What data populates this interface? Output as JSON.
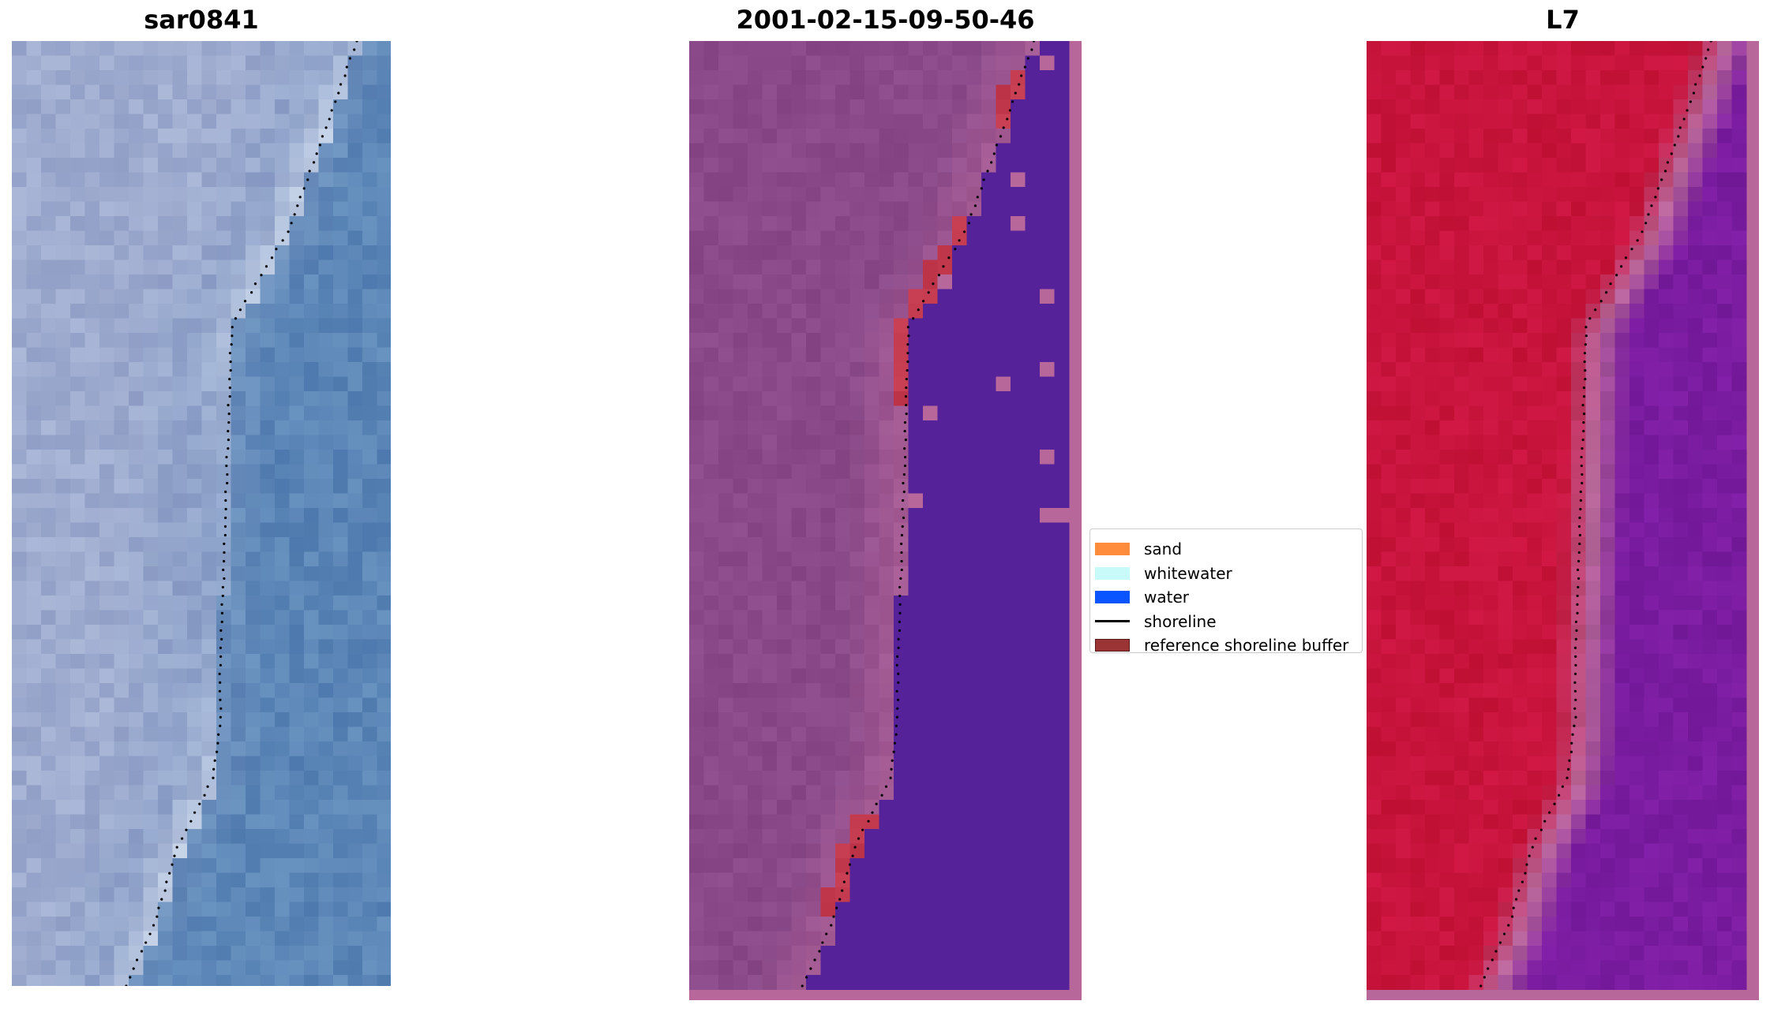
{
  "figure": {
    "panels": [
      {
        "title": "sar0841",
        "kind": "rgb"
      },
      {
        "title": "2001-02-15-09-50-46",
        "kind": "classification"
      },
      {
        "title": "L7",
        "kind": "index"
      }
    ]
  },
  "legend": {
    "items": [
      {
        "label": "sand",
        "type": "patch",
        "color": "#ff8c3c"
      },
      {
        "label": "whitewater",
        "type": "patch",
        "color": "#c8fafa"
      },
      {
        "label": "water",
        "type": "patch",
        "color": "#0a55ff"
      },
      {
        "label": "shoreline",
        "type": "line",
        "color": "#000000"
      },
      {
        "label": "reference shoreline buffer",
        "type": "patch",
        "color": "#9b3434",
        "edge": "#5a1a1a"
      }
    ]
  },
  "colors": {
    "rgb_water": "#5b86b7",
    "rgb_land": "#9eabcf",
    "rgb_whitewater": "#e8eef8",
    "class_land": "#8a4a8a",
    "class_water": "#55229a",
    "class_buffer": "#c33a4e",
    "class_border": "#b8679a",
    "index_land": "#c8143c",
    "index_water": "#7a1ca0",
    "shoreline_dot": "#000000"
  }
}
